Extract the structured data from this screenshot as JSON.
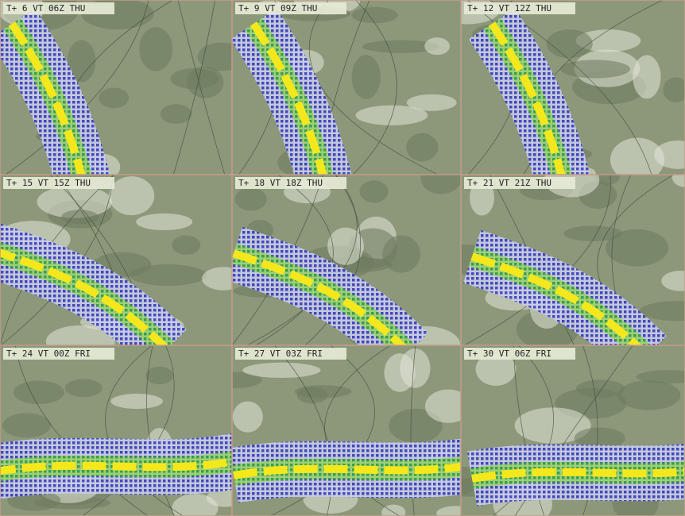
{
  "panels": [
    {
      "label": "T+ 6 VT 06Z THU"
    },
    {
      "label": "T+ 9 VT 09Z THU"
    },
    {
      "label": "T+ 12 VT 12Z THU"
    },
    {
      "label": "T+ 15 VT 15Z THU"
    },
    {
      "label": "T+ 18 VT 18Z THU"
    },
    {
      "label": "T+ 21 VT 21Z THU"
    },
    {
      "label": "T+ 24 VT 00Z FRI"
    },
    {
      "label": "T+ 27 VT 03Z FRI"
    },
    {
      "label": "T+ 30 VT 06Z FRI"
    }
  ]
}
